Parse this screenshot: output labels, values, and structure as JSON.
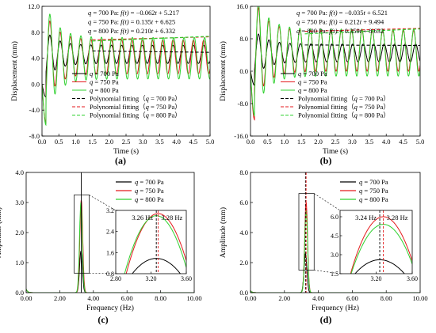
{
  "colors": {
    "black": "#000000",
    "red": "#e41a1c",
    "green": "#2fd12f"
  },
  "panels": [
    {
      "letter": "(a)",
      "chart_data": {
        "type": "line",
        "xlabel": "Time (s)",
        "ylabel": "Displacement (mm)",
        "xlim": [
          0,
          5
        ],
        "ylim": [
          -8,
          12
        ],
        "xticks": [
          0.0,
          0.5,
          1.0,
          1.5,
          2.0,
          2.5,
          3.0,
          3.5,
          4.0,
          4.5,
          5.0
        ],
        "xtick_labels": [
          "0.0",
          "0.5",
          "1.0",
          "1.5",
          "2.0",
          "2.5",
          "3.0",
          "3.5",
          "4.0",
          "4.5",
          "5.0"
        ],
        "yticks": [
          -8,
          -4,
          0,
          4,
          8,
          12
        ],
        "ytick_labels": [
          "-8.0",
          "-4.0",
          "0.0",
          "4.0",
          "8.0",
          "12.0"
        ],
        "series": [
          {
            "name": "q = 700 Pa",
            "color": "#000000",
            "style": "solid",
            "freq_hz": 3.28,
            "mean": 4.6,
            "amplitude": 1.4,
            "initial_min": -2.0,
            "initial_peak": 6.4
          },
          {
            "name": "q = 750 Pa",
            "color": "#e41a1c",
            "style": "solid",
            "freq_hz": 3.28,
            "mean": 4.2,
            "amplitude": 2.6,
            "initial_min": -6.0,
            "initial_peak": 10.3
          },
          {
            "name": "q = 800 Pa",
            "color": "#2fd12f",
            "style": "solid",
            "freq_hz": 3.26,
            "mean": 4.0,
            "amplitude": 3.2,
            "initial_min": -6.3,
            "initial_peak": 9.5
          },
          {
            "name": "Polynomial fitting（q = 700 Pa）",
            "color": "#000000",
            "style": "dashed",
            "slope": -0.062,
            "intercept": 5.217,
            "x_start": 1.5
          },
          {
            "name": "Polynomial fitting（q = 750 Pa）",
            "color": "#e41a1c",
            "style": "dashed",
            "slope": 0.135,
            "intercept": 6.625,
            "x_start": 1.5
          },
          {
            "name": "Polynomial fitting（q = 800 Pa）",
            "color": "#2fd12f",
            "style": "dashed",
            "slope": 0.21,
            "intercept": 6.332,
            "x_start": 1.5
          }
        ],
        "annotations": [
          "q = 700 Pa: f(t) = −0.062t + 5.217",
          "q = 750 Pa: f(t) = 0.135t + 6.625",
          "q = 800 Pa: f(t) = 0.210t + 6.332"
        ],
        "legend": [
          "q = 700 Pa",
          "q = 750 Pa",
          "q = 800 Pa",
          "Polynomial fitting（q = 700 Pa）",
          "Polynomial fitting（q = 750 Pa）",
          "Polynomial fitting（q = 800 Pa）"
        ]
      }
    },
    {
      "letter": "(b)",
      "chart_data": {
        "type": "line",
        "xlabel": "Time (s)",
        "ylabel": "Displacement (mm)",
        "xlim": [
          0,
          5
        ],
        "ylim": [
          -16,
          16
        ],
        "xticks": [
          0.0,
          0.5,
          1.0,
          1.5,
          2.0,
          2.5,
          3.0,
          3.5,
          4.0,
          4.5,
          5.0
        ],
        "xtick_labels": [
          "0.0",
          "0.5",
          "1.0",
          "1.5",
          "2.0",
          "2.5",
          "3.0",
          "3.5",
          "4.0",
          "4.5",
          "5.0"
        ],
        "yticks": [
          -16,
          -8,
          0,
          8,
          16
        ],
        "ytick_labels": [
          "-16.0",
          "-8.0",
          "0.0",
          "8.0",
          "16.0"
        ],
        "series": [
          {
            "name": "q = 700 Pa",
            "color": "#000000",
            "style": "solid",
            "freq_hz": 3.24,
            "mean": 4.5,
            "amplitude": 2.2,
            "initial_min": -3.5,
            "initial_peak": 7.8
          },
          {
            "name": "q = 750 Pa",
            "color": "#e41a1c",
            "style": "solid",
            "freq_hz": 3.28,
            "mean": 5.0,
            "amplitude": 5.0,
            "initial_min": -12.0,
            "initial_peak": 15.0
          },
          {
            "name": "q = 800 Pa",
            "color": "#2fd12f",
            "style": "solid",
            "freq_hz": 3.28,
            "mean": 4.6,
            "amplitude": 5.8,
            "initial_min": -11.0,
            "initial_peak": 15.8
          },
          {
            "name": "Polynomial fitting（q = 700 Pa）",
            "color": "#000000",
            "style": "dashed",
            "slope": -0.035,
            "intercept": 6.521,
            "x_start": 1.6
          },
          {
            "name": "Polynomial fitting（q = 750 Pa）",
            "color": "#e41a1c",
            "style": "dashed",
            "slope": 0.212,
            "intercept": 9.494,
            "x_start": 1.6
          },
          {
            "name": "Polynomial fitting（q = 800 Pa）",
            "color": "#2fd12f",
            "style": "dashed",
            "slope": 0.359,
            "intercept": 8.632,
            "x_start": 1.6
          }
        ],
        "annotations": [
          "q = 700 Pa: f(t) = −0.035t + 6.521",
          "q = 750 Pa: f(t) = 0.212t + 9.494",
          "q = 800 Pa: f(t) = 0.359t + 8.632"
        ],
        "legend": [
          "q = 700 Pa",
          "q = 750 Pa",
          "q = 800 Pa",
          "Polynomial fitting（q = 700 Pa）",
          "Polynomial fitting（q = 750 Pa）",
          "Polynomial fitting（q = 800 Pa）"
        ]
      }
    },
    {
      "letter": "(c)",
      "chart_data": {
        "type": "line",
        "xlabel": "Frequency (Hz)",
        "ylabel": "Amplitude (mm)",
        "xlim": [
          0,
          10
        ],
        "ylim": [
          0,
          4
        ],
        "xticks": [
          0,
          2,
          4,
          6,
          8,
          10
        ],
        "xtick_labels": [
          "0.00",
          "2.00",
          "4.00",
          "6.00",
          "8.00",
          "10.00"
        ],
        "yticks": [
          0,
          1,
          2,
          3,
          4
        ],
        "ytick_labels": [
          "0.0",
          "1.0",
          "2.0",
          "3.0",
          "4.0"
        ],
        "series": [
          {
            "name": "q = 700 Pa",
            "color": "#000000",
            "peak_hz": 3.26,
            "peak_value": 1.38
          },
          {
            "name": "q = 750 Pa",
            "color": "#e41a1c",
            "peak_hz": 3.28,
            "peak_value": 3.08
          },
          {
            "name": "q = 800 Pa",
            "color": "#2fd12f",
            "peak_hz": 3.26,
            "peak_value": 3.0
          }
        ],
        "vlines": [
          {
            "x": 3.28,
            "color": "#000000",
            "style": "solid"
          }
        ],
        "inset": {
          "xlim": [
            2.8,
            3.6
          ],
          "ylim": [
            0.8,
            3.2
          ],
          "xticks": [
            2.8,
            3.2,
            3.6
          ],
          "xtick_labels": [
            "2.80",
            "3.20",
            "3.60"
          ],
          "yticks": [
            0.8,
            1.6,
            2.4,
            3.2
          ],
          "ytick_labels": [
            "0.8",
            "1.6",
            "2.4",
            "3.2"
          ],
          "marker_lines": [
            {
              "x": 3.26,
              "color": "#000000"
            },
            {
              "x": 3.28,
              "color": "#e41a1c"
            }
          ],
          "labels": [
            "3.26 Hz",
            "3.28 Hz"
          ]
        },
        "legend": [
          "q = 700 Pa",
          "q = 750 Pa",
          "q = 800 Pa"
        ]
      }
    },
    {
      "letter": "(d)",
      "chart_data": {
        "type": "line",
        "xlabel": "Frequency (Hz)",
        "ylabel": "Amplitude (mm)",
        "xlim": [
          0,
          10
        ],
        "ylim": [
          0,
          8
        ],
        "xticks": [
          0,
          2,
          4,
          6,
          8,
          10
        ],
        "xtick_labels": [
          "0.00",
          "2.00",
          "4.00",
          "6.00",
          "8.00",
          "10.00"
        ],
        "yticks": [
          0,
          2,
          4,
          6,
          8
        ],
        "ytick_labels": [
          "0.0",
          "2.0",
          "4.0",
          "6.0",
          "8.0"
        ],
        "series": [
          {
            "name": "q = 700 Pa",
            "color": "#000000",
            "peak_hz": 3.24,
            "peak_value": 2.6
          },
          {
            "name": "q = 750 Pa",
            "color": "#e41a1c",
            "peak_hz": 3.28,
            "peak_value": 6.0
          },
          {
            "name": "q = 800 Pa",
            "color": "#2fd12f",
            "peak_hz": 3.28,
            "peak_value": 5.4
          }
        ],
        "vlines": [
          {
            "x": 3.24,
            "color": "#000000",
            "style": "dashed"
          },
          {
            "x": 3.28,
            "color": "#e41a1c",
            "style": "dashed"
          }
        ],
        "inset": {
          "xlim": [
            2.8,
            3.6
          ],
          "ylim": [
            1.5,
            6.5
          ],
          "xticks": [
            3.2,
            3.6
          ],
          "xtick_labels": [
            "3.20",
            "3.60"
          ],
          "yticks": [
            1.5,
            3.0,
            4.5,
            6.0
          ],
          "ytick_labels": [
            "1.5",
            "3.0",
            "4.5",
            "6.0"
          ],
          "marker_lines": [
            {
              "x": 3.24,
              "color": "#000000"
            },
            {
              "x": 3.28,
              "color": "#e41a1c"
            }
          ],
          "labels": [
            "3.24 Hz",
            "3.28 Hz"
          ]
        },
        "legend": [
          "q = 700 Pa",
          "q = 750 Pa",
          "q = 800 Pa"
        ]
      }
    }
  ]
}
